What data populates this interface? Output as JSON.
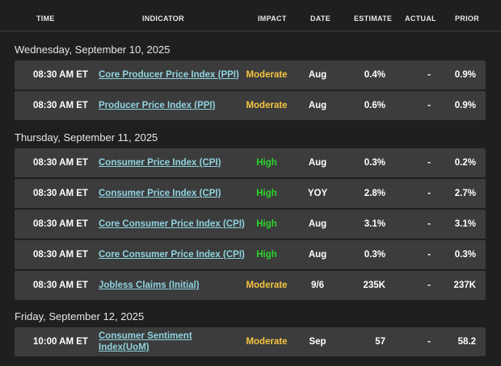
{
  "header": {
    "time": "TIME",
    "indicator": "INDICATOR",
    "impact": "IMPACT",
    "date": "DATE",
    "estimate": "ESTIMATE",
    "actual": "ACTUAL",
    "prior": "PRIOR"
  },
  "colors": {
    "background": "#1f1f1f",
    "row": "#3c3c3c",
    "link": "#8fd3df",
    "moderate": "#f5c542",
    "high": "#2bd42b"
  },
  "days": [
    {
      "title": "Wednesday, September 10, 2025",
      "rows": [
        {
          "time": "08:30 AM ET",
          "indicator": "Core Producer Price Index (PPI)",
          "impact": "Moderate",
          "date": "Aug",
          "estimate": "0.4%",
          "actual": "-",
          "prior": "0.9%"
        },
        {
          "time": "08:30 AM ET",
          "indicator": "Producer Price Index (PPI)",
          "impact": "Moderate",
          "date": "Aug",
          "estimate": "0.6%",
          "actual": "-",
          "prior": "0.9%"
        }
      ]
    },
    {
      "title": "Thursday, September 11, 2025",
      "rows": [
        {
          "time": "08:30 AM ET",
          "indicator": "Consumer Price Index (CPI)",
          "impact": "High",
          "date": "Aug",
          "estimate": "0.3%",
          "actual": "-",
          "prior": "0.2%"
        },
        {
          "time": "08:30 AM ET",
          "indicator": "Consumer Price Index (CPI)",
          "impact": "High",
          "date": "YOY",
          "estimate": "2.8%",
          "actual": "-",
          "prior": "2.7%"
        },
        {
          "time": "08:30 AM ET",
          "indicator": "Core Consumer Price Index (CPI)",
          "impact": "High",
          "date": "Aug",
          "estimate": "3.1%",
          "actual": "-",
          "prior": "3.1%"
        },
        {
          "time": "08:30 AM ET",
          "indicator": "Core Consumer Price Index (CPI)",
          "impact": "High",
          "date": "Aug",
          "estimate": "0.3%",
          "actual": "-",
          "prior": "0.3%"
        },
        {
          "time": "08:30 AM ET",
          "indicator": "Jobless Claims (Initial)",
          "impact": "Moderate",
          "date": "9/6",
          "estimate": "235K",
          "actual": "-",
          "prior": "237K"
        }
      ]
    },
    {
      "title": "Friday, September 12, 2025",
      "rows": [
        {
          "time": "10:00 AM ET",
          "indicator": "Consumer Sentiment Index(UoM)",
          "impact": "Moderate",
          "date": "Sep",
          "estimate": "57",
          "actual": "-",
          "prior": "58.2"
        }
      ]
    }
  ]
}
